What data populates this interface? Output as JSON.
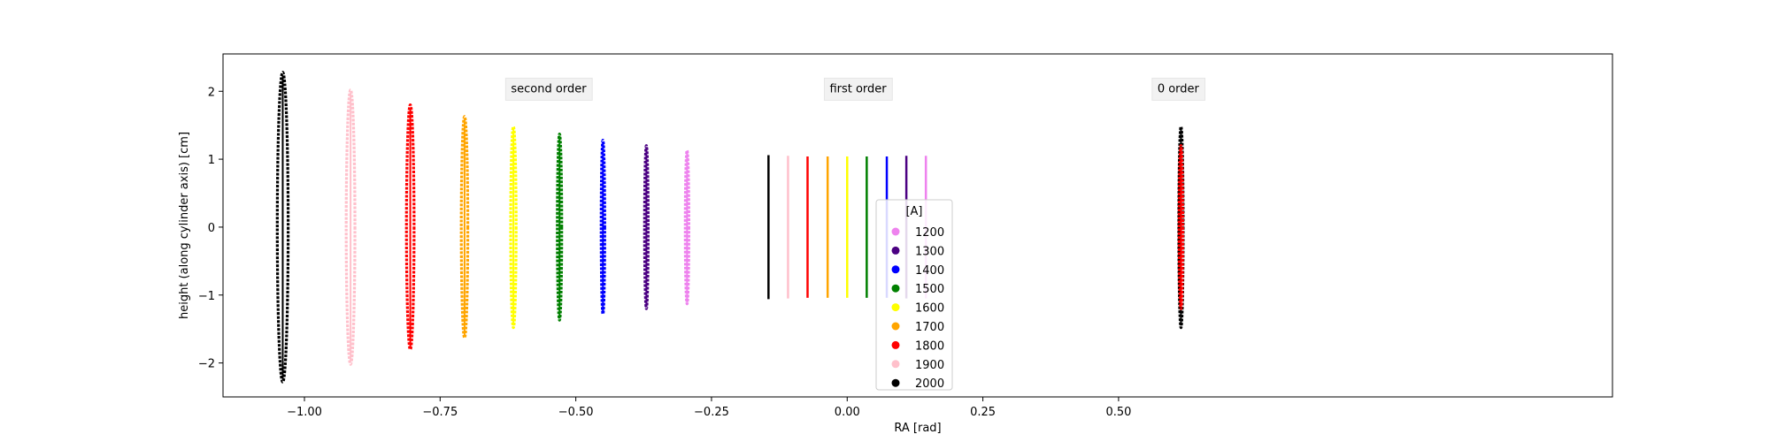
{
  "chart_data": {
    "type": "scatter",
    "xlabel": "RA [rad]",
    "ylabel": "height (along cylinder axis) [cm]",
    "xlim": [
      -1.15,
      1.41
    ],
    "ylim": [
      -2.5,
      2.55
    ],
    "xticks": [
      -1.0,
      -0.75,
      -0.5,
      -0.25,
      0.0,
      0.25,
      0.5
    ],
    "xtick_labels": [
      "−1.00",
      "−0.75",
      "−0.50",
      "−0.25",
      "0.00",
      "0.25",
      "0.50"
    ],
    "yticks": [
      -2,
      -1,
      0,
      1,
      2
    ],
    "ytick_labels": [
      "−2",
      "−1",
      "0",
      "1",
      "2"
    ],
    "grid": false,
    "legend": {
      "title": "[A]",
      "placement": "lower center",
      "entries": [
        {
          "label": "1200",
          "color": "#ee82ee"
        },
        {
          "label": "1300",
          "color": "#4b0082"
        },
        {
          "label": "1400",
          "color": "#0000ff"
        },
        {
          "label": "1500",
          "color": "#008000"
        },
        {
          "label": "1600",
          "color": "#ffff00"
        },
        {
          "label": "1700",
          "color": "#ffa500"
        },
        {
          "label": "1800",
          "color": "#ff0000"
        },
        {
          "label": "1900",
          "color": "#ffc0cb"
        },
        {
          "label": "2000",
          "color": "#000000"
        }
      ]
    },
    "annotations": [
      {
        "text": "second order",
        "x": -0.55,
        "y": 2.05
      },
      {
        "text": "first order",
        "x": 0.02,
        "y": 2.05
      },
      {
        "text": "0 order",
        "x": 0.61,
        "y": 2.05
      }
    ],
    "series": [
      {
        "order": "second order",
        "shape": "ellipse",
        "traces": [
          {
            "wavelength": "2000",
            "center": -1.04,
            "half_width": 0.01,
            "half_height": 2.28
          },
          {
            "wavelength": "1900",
            "center": -0.915,
            "half_width": 0.008,
            "half_height": 2.02
          },
          {
            "wavelength": "1800",
            "center": -0.805,
            "half_width": 0.007,
            "half_height": 1.8
          },
          {
            "wavelength": "1700",
            "center": -0.705,
            "half_width": 0.006,
            "half_height": 1.63
          },
          {
            "wavelength": "1600",
            "center": -0.615,
            "half_width": 0.005,
            "half_height": 1.48
          },
          {
            "wavelength": "1500",
            "center": -0.53,
            "half_width": 0.004,
            "half_height": 1.37
          },
          {
            "wavelength": "1400",
            "center": -0.45,
            "half_width": 0.003,
            "half_height": 1.28
          },
          {
            "wavelength": "1300",
            "center": -0.37,
            "half_width": 0.0025,
            "half_height": 1.2
          },
          {
            "wavelength": "1200",
            "center": -0.295,
            "half_width": 0.002,
            "half_height": 1.13
          }
        ]
      },
      {
        "order": "first order",
        "shape": "line",
        "traces": [
          {
            "wavelength": "2000",
            "center": -0.145,
            "half_height": 1.06
          },
          {
            "wavelength": "1900",
            "center": -0.109,
            "half_height": 1.05
          },
          {
            "wavelength": "1800",
            "center": -0.073,
            "half_height": 1.04
          },
          {
            "wavelength": "1700",
            "center": -0.036,
            "half_height": 1.04
          },
          {
            "wavelength": "1600",
            "center": 0.0,
            "half_height": 1.04
          },
          {
            "wavelength": "1500",
            "center": 0.036,
            "half_height": 1.04
          },
          {
            "wavelength": "1400",
            "center": 0.073,
            "half_height": 1.04
          },
          {
            "wavelength": "1300",
            "center": 0.109,
            "half_height": 1.05
          },
          {
            "wavelength": "1200",
            "center": 0.145,
            "half_height": 1.05
          }
        ]
      },
      {
        "order": "0 order",
        "shape": "ellipse",
        "traces": [
          {
            "wavelength": "2000",
            "center": 0.615,
            "half_width": 0.004,
            "half_height": 1.48
          },
          {
            "wavelength": "1800",
            "center": 0.615,
            "half_width": 0.0025,
            "half_height": 1.2
          }
        ]
      }
    ]
  }
}
